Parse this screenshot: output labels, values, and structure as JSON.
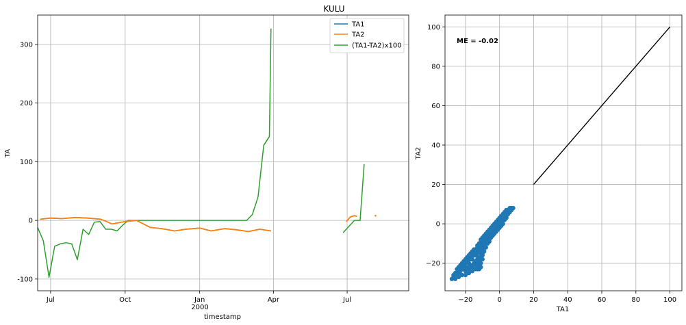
{
  "title": "KULU",
  "chart_data": [
    {
      "type": "line",
      "title": "KULU",
      "xlabel": "timestamp",
      "ylabel": "TA",
      "x_tick_labels": [
        "Jul",
        "Oct",
        "Jan",
        "Apr",
        "Jul"
      ],
      "x_secondary_label": "2000",
      "x_ticks_dates": [
        "1999-07-01",
        "1999-10-01",
        "2000-01-01",
        "2000-04-01",
        "2000-07-01"
      ],
      "xlim": [
        "1999-06-15",
        "2000-09-15"
      ],
      "ylim": [
        -120,
        350
      ],
      "yticks": [
        -100,
        0,
        100,
        200,
        300
      ],
      "grid": true,
      "legend_position": "top-right",
      "series": [
        {
          "name": "TA1",
          "color": "#1f77b4",
          "segments": [
            {
              "x": [
                "1999-06-18",
                "1999-07-01",
                "1999-07-15",
                "1999-08-01",
                "1999-08-15",
                "1999-09-01",
                "1999-09-15",
                "1999-10-01",
                "1999-10-15",
                "1999-11-01",
                "1999-11-15",
                "1999-12-01",
                "1999-12-15",
                "2000-01-01",
                "2000-01-15",
                "2000-02-01",
                "2000-02-15",
                "2000-03-01",
                "2000-03-15",
                "2000-03-29"
              ],
              "y": [
                2,
                4,
                3,
                5,
                4,
                2,
                -6,
                -2,
                0,
                -12,
                -14,
                -18,
                -15,
                -13,
                -18,
                -14,
                -16,
                -19,
                -15,
                -18
              ]
            },
            {
              "x": [
                "2000-06-30",
                "2000-07-05",
                "2000-07-10",
                "2000-07-13"
              ],
              "y": [
                -2,
                6,
                8,
                7
              ]
            },
            {
              "x": [
                "2000-08-05"
              ],
              "y": [
                8
              ]
            }
          ]
        },
        {
          "name": "TA2",
          "color": "#ff7f0e",
          "segments": [
            {
              "x": [
                "1999-06-18",
                "1999-07-01",
                "1999-07-15",
                "1999-08-01",
                "1999-08-15",
                "1999-09-01",
                "1999-09-15",
                "1999-10-01",
                "1999-10-15",
                "1999-11-01",
                "1999-11-15",
                "1999-12-01",
                "1999-12-15",
                "2000-01-01",
                "2000-01-15",
                "2000-02-01",
                "2000-02-15",
                "2000-03-01",
                "2000-03-15",
                "2000-03-29"
              ],
              "y": [
                2,
                4,
                3,
                5,
                4,
                2,
                -6,
                -2,
                0,
                -12,
                -14,
                -18,
                -15,
                -13,
                -18,
                -14,
                -16,
                -19,
                -15,
                -18
              ]
            },
            {
              "x": [
                "2000-06-30",
                "2000-07-05",
                "2000-07-10",
                "2000-07-13"
              ],
              "y": [
                -2,
                6,
                8,
                7
              ]
            },
            {
              "x": [
                "2000-08-05"
              ],
              "y": [
                8
              ]
            }
          ]
        },
        {
          "name": "(TA1-TA2)x100",
          "color": "#2ca02c",
          "segments": [
            {
              "x": [
                "1999-06-15",
                "1999-06-22",
                "1999-06-29",
                "1999-07-06",
                "1999-07-13",
                "1999-07-20",
                "1999-07-27",
                "1999-08-03",
                "1999-08-10",
                "1999-08-17",
                "1999-08-24",
                "1999-08-31",
                "1999-09-07",
                "1999-09-14",
                "1999-09-21",
                "1999-09-28",
                "1999-10-05",
                "1999-10-15",
                "1999-11-01",
                "1999-12-01",
                "2000-01-01",
                "2000-02-01",
                "2000-02-28",
                "2000-03-06",
                "2000-03-13",
                "2000-03-20",
                "2000-03-27"
              ],
              "y": [
                -12,
                -35,
                -97,
                -44,
                -40,
                -38,
                -40,
                -67,
                -15,
                -24,
                -3,
                -2,
                -15,
                -15,
                -18,
                -8,
                0,
                0,
                0,
                0,
                0,
                0,
                0,
                10,
                40,
                128,
                143
              ]
            },
            {
              "x": [
                "2000-03-20",
                "2000-03-27"
              ],
              "y": [
                128,
                143
              ]
            },
            {
              "x": [
                "2000-03-27",
                "2000-03-29"
              ],
              "y": [
                143,
                327
              ]
            },
            {
              "x": [
                "2000-06-26",
                "2000-07-10",
                "2000-07-17",
                "2000-07-22"
              ],
              "y": [
                -21,
                0,
                0,
                96
              ]
            }
          ]
        }
      ]
    },
    {
      "type": "scatter",
      "xlabel": "TA1",
      "ylabel": "TA2",
      "xlim": [
        -32,
        107
      ],
      "ylim": [
        -34,
        106
      ],
      "xticks": [
        -20,
        0,
        20,
        40,
        60,
        80,
        100
      ],
      "yticks": [
        -20,
        0,
        20,
        40,
        60,
        80,
        100
      ],
      "grid": true,
      "annotation": "ME = -0.02",
      "point_color": "#1f77b4",
      "line_color": "#000000",
      "reference_line": {
        "x": [
          20,
          100
        ],
        "y": [
          20,
          100
        ]
      },
      "points": [
        [
          -28,
          -28
        ],
        [
          -27,
          -27
        ],
        [
          -26,
          -26
        ],
        [
          -25,
          -25
        ],
        [
          -24,
          -24
        ],
        [
          -23,
          -23
        ],
        [
          -22,
          -22
        ],
        [
          -21,
          -21
        ],
        [
          -20,
          -20
        ],
        [
          -19,
          -19
        ],
        [
          -18,
          -18
        ],
        [
          -17,
          -17
        ],
        [
          -16,
          -16
        ],
        [
          -15,
          -15
        ],
        [
          -14,
          -14
        ],
        [
          -13,
          -13
        ],
        [
          -12,
          -12
        ],
        [
          -11,
          -11
        ],
        [
          -10,
          -10
        ],
        [
          -9,
          -9
        ],
        [
          -8,
          -8
        ],
        [
          -7,
          -7
        ],
        [
          -6,
          -6
        ],
        [
          -5,
          -5
        ],
        [
          -4,
          -4
        ],
        [
          -3,
          -3
        ],
        [
          -2,
          -2
        ],
        [
          -1,
          -1
        ],
        [
          0,
          0
        ],
        [
          1,
          1
        ],
        [
          2,
          2
        ],
        [
          3,
          3
        ],
        [
          4,
          4
        ],
        [
          5,
          5
        ],
        [
          6,
          6
        ],
        [
          7,
          7
        ],
        [
          8,
          8
        ],
        [
          -25,
          -23
        ],
        [
          -23,
          -21
        ],
        [
          -21,
          -19
        ],
        [
          -19,
          -17
        ],
        [
          -17,
          -15
        ],
        [
          -15,
          -13
        ],
        [
          -13,
          -11
        ],
        [
          -11,
          -9
        ],
        [
          -9,
          -7
        ],
        [
          -7,
          -5
        ],
        [
          -24,
          -25
        ],
        [
          -22,
          -23
        ],
        [
          -20,
          -22
        ],
        [
          -18,
          -20
        ],
        [
          -16,
          -18
        ],
        [
          -14,
          -16
        ],
        [
          -12,
          -14
        ],
        [
          -10,
          -12
        ],
        [
          -8,
          -10
        ],
        [
          -6,
          -8
        ],
        [
          -20,
          -24
        ],
        [
          -18,
          -23
        ],
        [
          -16,
          -22
        ],
        [
          -14,
          -21
        ],
        [
          -12,
          -20
        ],
        [
          -12,
          -23
        ],
        [
          -11,
          -22
        ],
        [
          -13,
          -18
        ],
        [
          -15,
          -20
        ],
        [
          -17,
          -21
        ],
        [
          -19,
          -22
        ],
        [
          -21,
          -23
        ],
        [
          -23,
          -24
        ],
        [
          -14,
          -19
        ],
        [
          -13,
          -21
        ],
        [
          -12,
          -17
        ],
        [
          -11,
          -15
        ],
        [
          -10,
          -13
        ],
        [
          -9,
          -11
        ],
        [
          -10,
          -16
        ],
        [
          -11,
          -18
        ],
        [
          -12,
          -19
        ],
        [
          -13,
          -23
        ],
        [
          -14,
          -23
        ],
        [
          -16,
          -24
        ],
        [
          -18,
          -25
        ],
        [
          -20,
          -26
        ],
        [
          -22,
          -26
        ],
        [
          -24,
          -27
        ],
        [
          -26,
          -28
        ],
        [
          -15,
          -16
        ],
        [
          -16,
          -16
        ],
        [
          -17,
          -18
        ],
        [
          -18,
          -18
        ],
        [
          -14,
          -13
        ],
        [
          -13,
          -12
        ],
        [
          -12,
          -10
        ],
        [
          -11,
          -8
        ],
        [
          -10,
          -7
        ],
        [
          -9,
          -6
        ],
        [
          -8,
          -5
        ],
        [
          -7,
          -4
        ],
        [
          -6,
          -3
        ],
        [
          -5,
          -2
        ],
        [
          -4,
          -1
        ],
        [
          -3,
          0
        ],
        [
          -2,
          1
        ],
        [
          -1,
          2
        ],
        [
          0,
          3
        ],
        [
          1,
          4
        ],
        [
          2,
          5
        ],
        [
          3,
          6
        ],
        [
          4,
          7
        ],
        [
          5,
          7
        ],
        [
          6,
          8
        ],
        [
          7,
          8
        ],
        [
          7,
          7
        ],
        [
          6,
          6
        ],
        [
          5,
          5
        ],
        [
          4,
          3
        ],
        [
          3,
          2
        ],
        [
          2,
          0
        ],
        [
          1,
          -1
        ],
        [
          0,
          -2
        ],
        [
          -1,
          -3
        ],
        [
          -2,
          -4
        ],
        [
          -3,
          -5
        ],
        [
          -4,
          -6
        ],
        [
          -5,
          -7
        ],
        [
          -6,
          -9
        ],
        [
          -7,
          -10
        ],
        [
          -8,
          -12
        ],
        [
          -9,
          -14
        ],
        [
          -10,
          -15
        ],
        [
          -11,
          -17
        ],
        [
          -12,
          -21
        ],
        [
          -11,
          -20
        ],
        [
          -10,
          -18
        ],
        [
          -13,
          -15
        ],
        [
          -14,
          -15
        ],
        [
          -12,
          -13
        ],
        [
          -16,
          -14
        ],
        [
          -18,
          -16
        ],
        [
          -20,
          -18
        ],
        [
          -22,
          -20
        ],
        [
          -24,
          -22
        ],
        [
          -26,
          -25
        ],
        [
          -27,
          -26
        ]
      ]
    }
  ]
}
